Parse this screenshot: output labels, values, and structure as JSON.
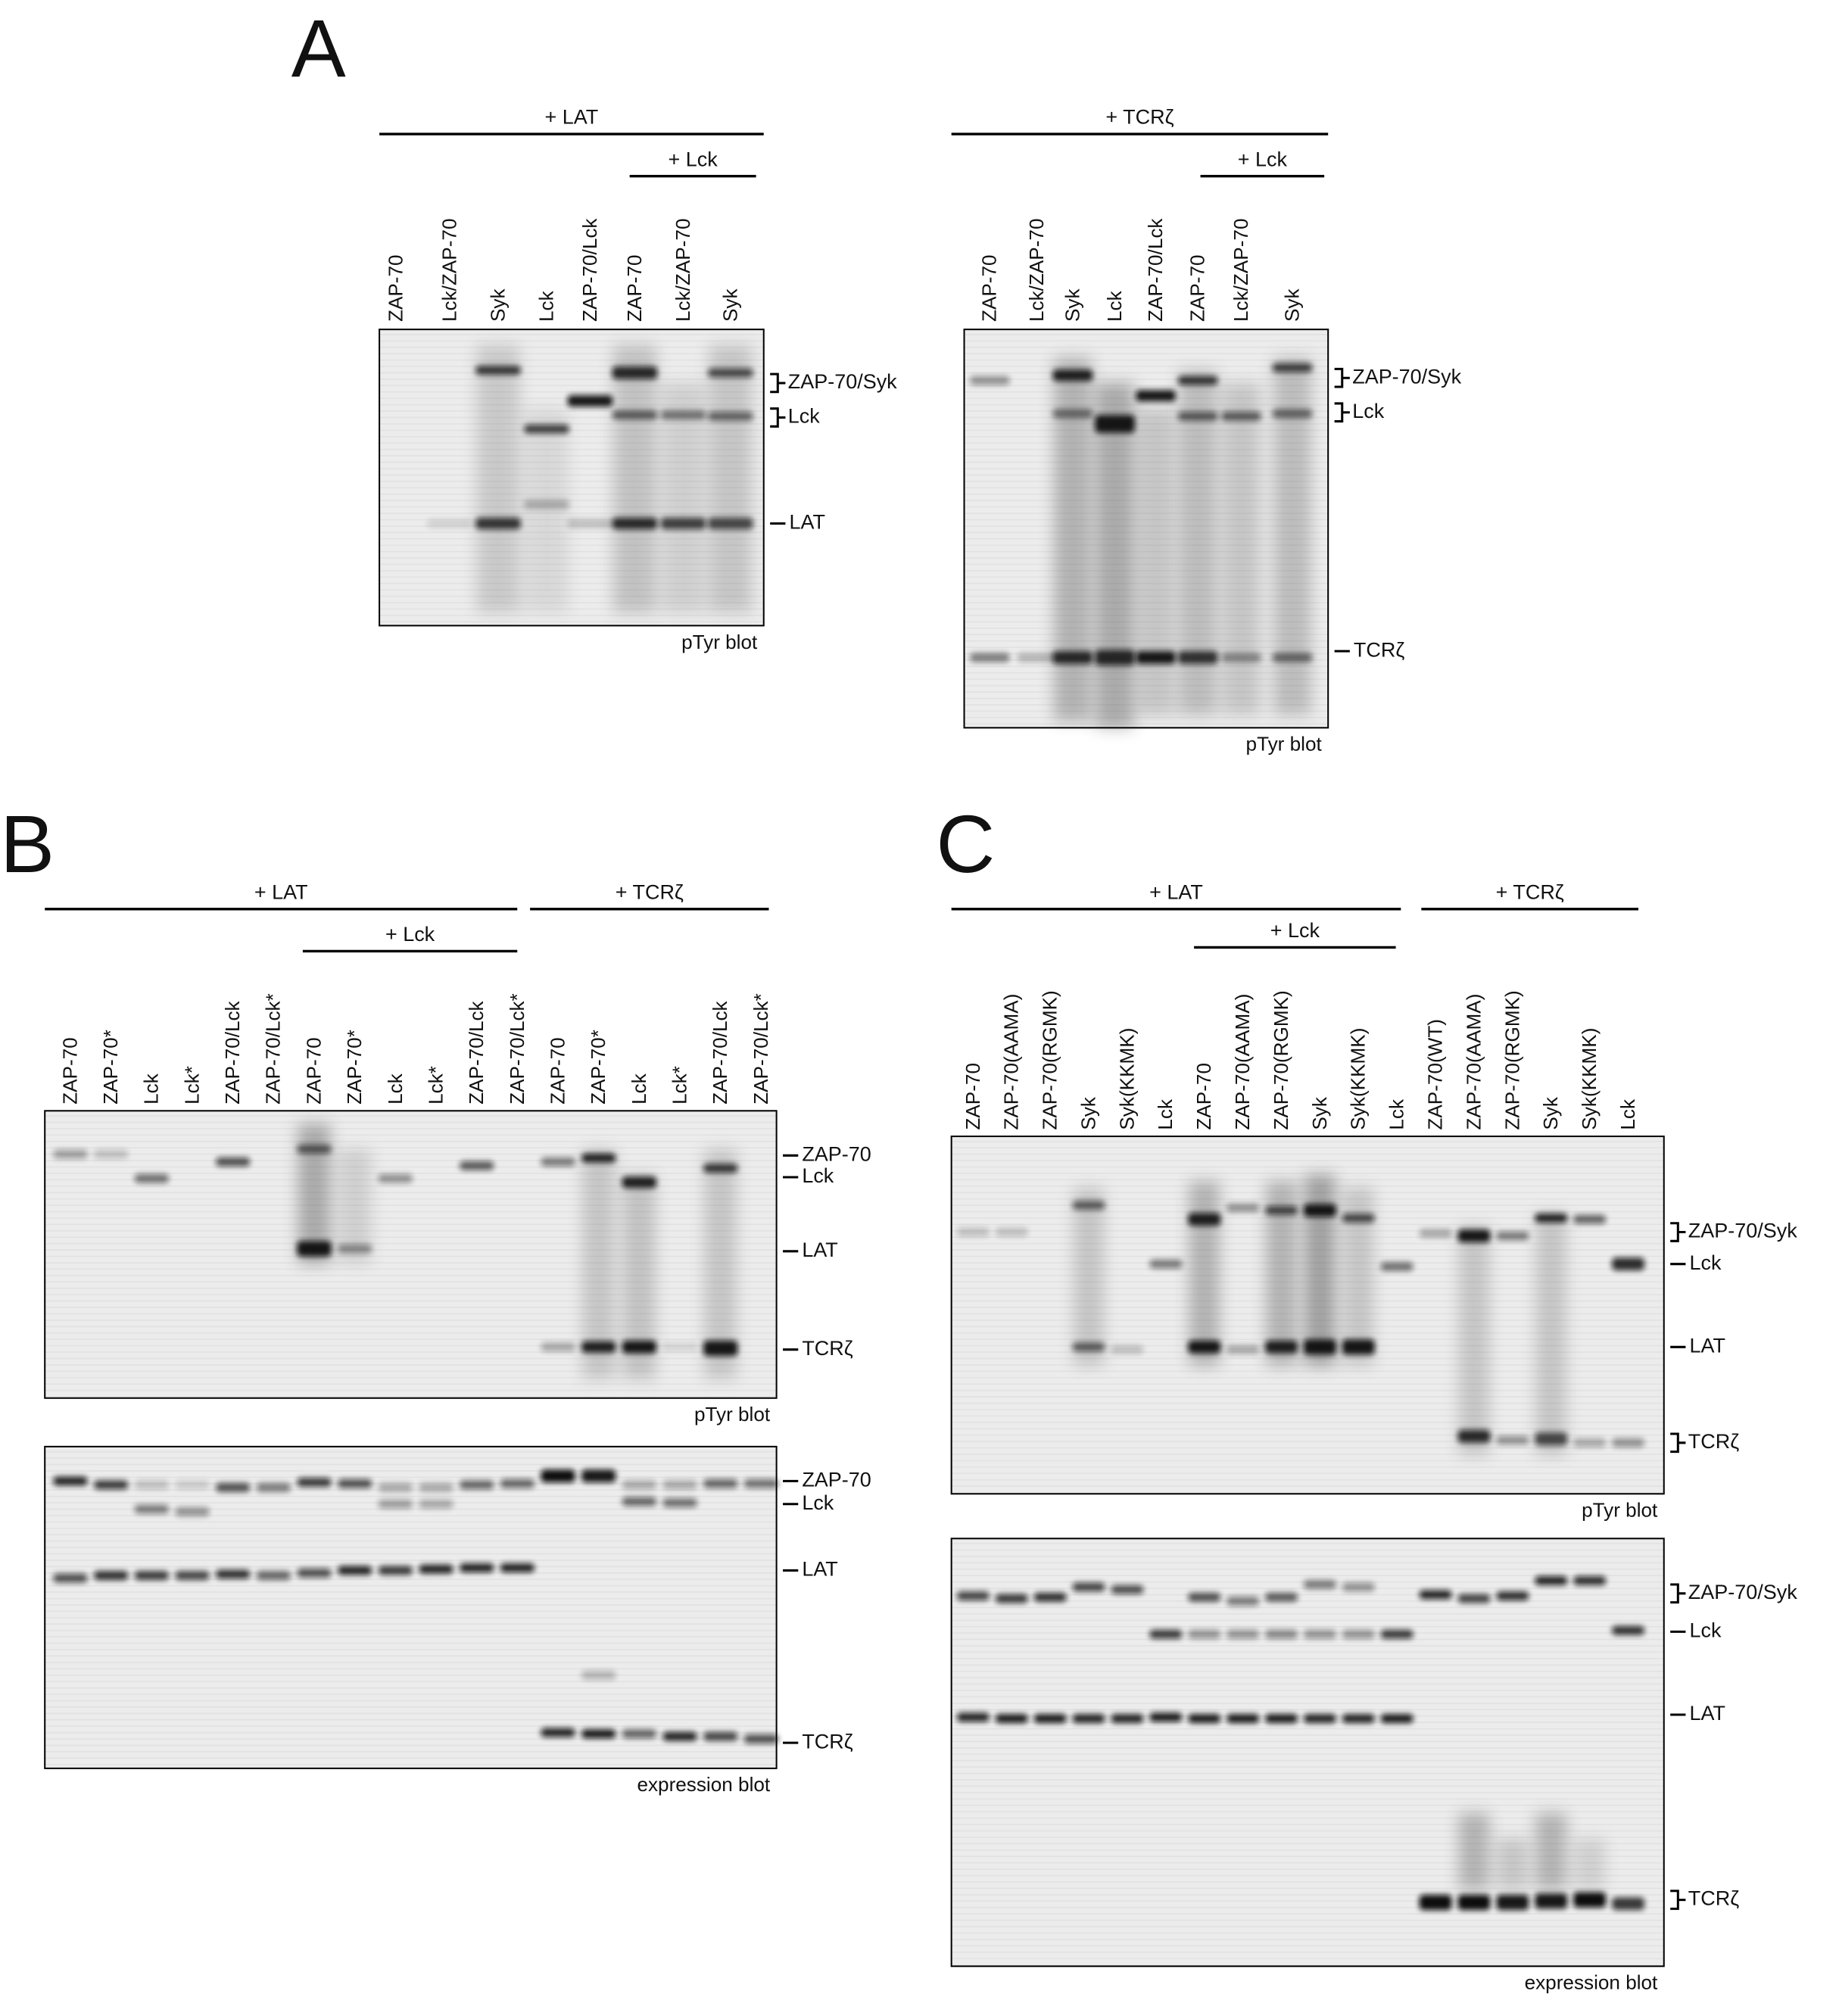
{
  "panel_a": {
    "letter": "A",
    "blots": [
      {
        "group_label": "+ LAT",
        "sub_label": "+ Lck",
        "lanes": [
          "ZAP-70",
          "Lck/ZAP-70",
          "Syk",
          "Lck",
          "ZAP-70/Lck",
          "ZAP-70",
          "Lck/ZAP-70",
          "Syk"
        ],
        "markers": [
          "ZAP-70/Syk",
          "Lck",
          "LAT"
        ],
        "caption": "pTyr blot"
      },
      {
        "group_label": "+ TCRζ",
        "sub_label": "+ Lck",
        "lanes": [
          "ZAP-70",
          "Lck/ZAP-70",
          "Syk",
          "Lck",
          "ZAP-70/Lck",
          "ZAP-70",
          "Lck/ZAP-70",
          "Syk"
        ],
        "markers": [
          "ZAP-70/Syk",
          "Lck",
          "TCRζ"
        ],
        "caption": "pTyr blot"
      }
    ]
  },
  "panel_b": {
    "letter": "B",
    "group_labels": [
      "+ LAT",
      "+ TCRζ"
    ],
    "sub_label": "+ Lck",
    "lanes": [
      "ZAP-70",
      "ZAP-70*",
      "Lck",
      "Lck*",
      "ZAP-70/Lck",
      "ZAP-70/Lck*",
      "ZAP-70",
      "ZAP-70*",
      "Lck",
      "Lck*",
      "ZAP-70/Lck",
      "ZAP-70/Lck*",
      "ZAP-70",
      "ZAP-70*",
      "Lck",
      "Lck*",
      "ZAP-70/Lck",
      "ZAP-70/Lck*"
    ],
    "blots": [
      {
        "markers": [
          "ZAP-70",
          "Lck",
          "LAT",
          "TCRζ"
        ],
        "caption": "pTyr blot"
      },
      {
        "markers": [
          "ZAP-70",
          "Lck",
          "LAT",
          "TCRζ"
        ],
        "caption": "expression blot"
      }
    ]
  },
  "panel_c": {
    "letter": "C",
    "group_labels": [
      "+ LAT",
      "+ TCRζ"
    ],
    "sub_label": "+ Lck",
    "lanes": [
      "ZAP-70",
      "ZAP-70(AAMA)",
      "ZAP-70(RGMK)",
      "Syk",
      "Syk(KKMK)",
      "Lck",
      "ZAP-70",
      "ZAP-70(AAMA)",
      "ZAP-70(RGMK)",
      "Syk",
      "Syk(KKMK)",
      "Lck",
      "ZAP-70(WT)",
      "ZAP-70(AAMA)",
      "ZAP-70(RGMK)",
      "Syk",
      "Syk(KKMK)",
      "Lck"
    ],
    "blots": [
      {
        "markers": [
          "ZAP-70/Syk",
          "Lck",
          "LAT",
          "TCRζ"
        ],
        "caption": "pTyr blot"
      },
      {
        "markers": [
          "ZAP-70/Syk",
          "Lck",
          "LAT",
          "TCRζ"
        ],
        "caption": "expression blot"
      }
    ]
  }
}
